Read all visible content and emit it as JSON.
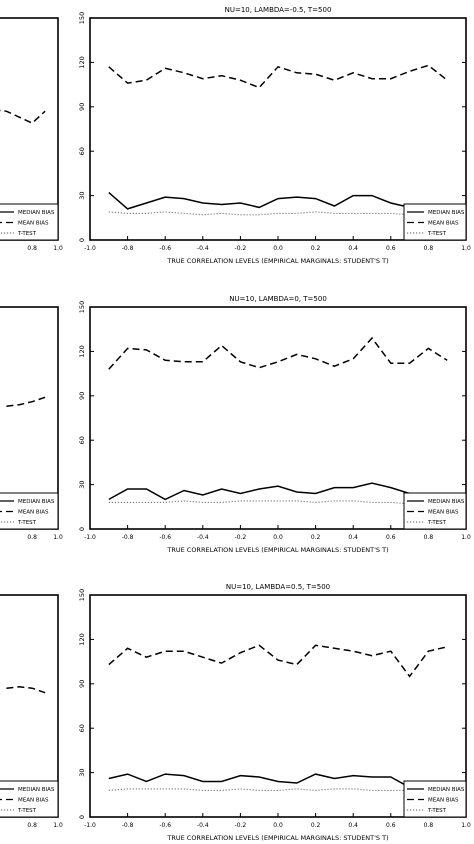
{
  "chart_data": [
    {
      "type": "line",
      "title": "NU=10,   LAMBDA=-0.5, T=500",
      "xlabel": "TRUE CORRELATION LEVELS (EMPIRICAL MARGINALS: STUDENT'S T)",
      "ylabel": "",
      "xlim": [
        -1.0,
        1.0
      ],
      "ylim": [
        0,
        150
      ],
      "xticks": [
        "-1.0",
        "-0.8",
        "-0.6",
        "-0.4",
        "-0.2",
        "0.0",
        "0.2",
        "0.4",
        "0.6",
        "0.8",
        "1.0"
      ],
      "yticks": [
        "0",
        "30",
        "60",
        "90",
        "120",
        "150"
      ],
      "legend_position": "bottom-right",
      "x": [
        -0.9,
        -0.8,
        -0.7,
        -0.6,
        -0.5,
        -0.4,
        -0.3,
        -0.2,
        -0.1,
        0.0,
        0.1,
        0.2,
        0.3,
        0.4,
        0.5,
        0.6,
        0.7,
        0.8,
        0.9
      ],
      "series": [
        {
          "name": "MEDIAN BIAS",
          "style": "solid",
          "values": [
            32,
            21,
            25,
            29,
            28,
            25,
            24,
            25,
            22,
            28,
            29,
            28,
            23,
            30,
            30,
            25,
            22,
            21,
            20
          ]
        },
        {
          "name": "MEAN BIAS",
          "style": "dashed",
          "values": [
            117,
            106,
            108,
            116,
            113,
            109,
            111,
            108,
            103,
            117,
            113,
            112,
            108,
            113,
            109,
            109,
            114,
            118,
            108
          ]
        },
        {
          "name": "T-TEST",
          "style": "dotted",
          "values": [
            19,
            18,
            18,
            19,
            18,
            17,
            18,
            17,
            17,
            18,
            18,
            19,
            18,
            18,
            18,
            18,
            17,
            18,
            18
          ]
        }
      ],
      "left_partial": {
        "xticks": [
          "0.8",
          "1.0"
        ],
        "legend": [
          "MEDIAN BIAS",
          "MEAN BIAS",
          "T-TEST"
        ],
        "mean_x": [
          0.5,
          0.6,
          0.7,
          0.8,
          0.9
        ],
        "mean_values": [
          88,
          87,
          83,
          79,
          87
        ]
      }
    },
    {
      "type": "line",
      "title": "NU=10,   LAMBDA=0, T=500",
      "xlabel": "TRUE CORRELATION LEVELS (EMPIRICAL MARGINALS: STUDENT'S T)",
      "ylabel": "",
      "xlim": [
        -1.0,
        1.0
      ],
      "ylim": [
        0,
        150
      ],
      "xticks": [
        "-1.0",
        "-0.8",
        "-0.6",
        "-0.4",
        "-0.2",
        "0.0",
        "0.2",
        "0.4",
        "0.6",
        "0.8",
        "1.0"
      ],
      "yticks": [
        "0",
        "30",
        "60",
        "90",
        "120",
        "150"
      ],
      "legend_position": "bottom-right",
      "x": [
        -0.9,
        -0.8,
        -0.7,
        -0.6,
        -0.5,
        -0.4,
        -0.3,
        -0.2,
        -0.1,
        0.0,
        0.1,
        0.2,
        0.3,
        0.4,
        0.5,
        0.6,
        0.7,
        0.8,
        0.9
      ],
      "series": [
        {
          "name": "MEDIAN BIAS",
          "style": "solid",
          "values": [
            20,
            27,
            27,
            20,
            26,
            23,
            27,
            24,
            27,
            29,
            25,
            24,
            28,
            28,
            31,
            28,
            24,
            22,
            21
          ]
        },
        {
          "name": "MEAN BIAS",
          "style": "dashed",
          "values": [
            108,
            122,
            121,
            114,
            113,
            113,
            124,
            113,
            109,
            113,
            118,
            115,
            110,
            115,
            129,
            112,
            112,
            122,
            114
          ]
        },
        {
          "name": "T-TEST",
          "style": "dotted",
          "values": [
            18,
            18,
            18,
            18,
            19,
            18,
            18,
            19,
            19,
            19,
            19,
            18,
            19,
            19,
            18,
            18,
            17,
            17,
            17
          ]
        }
      ],
      "left_partial": {
        "xticks": [
          "0.8",
          "1.0"
        ],
        "legend": [
          "MEDIAN BIAS",
          "MEAN BIAS",
          "T-TEST"
        ],
        "mean_x": [
          0.6,
          0.7,
          0.8,
          0.9
        ],
        "mean_values": [
          83,
          84,
          86,
          89
        ]
      }
    },
    {
      "type": "line",
      "title": "NU=10,   LAMBDA=0.5, T=500",
      "xlabel": "TRUE CORRELATION LEVELS (EMPIRICAL MARGINALS: STUDENT'S T)",
      "ylabel": "",
      "xlim": [
        -1.0,
        1.0
      ],
      "ylim": [
        0,
        150
      ],
      "xticks": [
        "-1.0",
        "-0.8",
        "-0.6",
        "-0.4",
        "-0.2",
        "0.0",
        "0.2",
        "0.4",
        "0.6",
        "0.8",
        "1.0"
      ],
      "yticks": [
        "0",
        "30",
        "60",
        "90",
        "120",
        "150"
      ],
      "legend_position": "bottom-right",
      "x": [
        -0.9,
        -0.8,
        -0.7,
        -0.6,
        -0.5,
        -0.4,
        -0.3,
        -0.2,
        -0.1,
        0.0,
        0.1,
        0.2,
        0.3,
        0.4,
        0.5,
        0.6,
        0.7,
        0.8,
        0.9
      ],
      "series": [
        {
          "name": "MEDIAN BIAS",
          "style": "solid",
          "values": [
            26,
            29,
            24,
            29,
            28,
            24,
            24,
            28,
            27,
            24,
            23,
            29,
            26,
            28,
            27,
            27,
            20,
            20,
            20
          ]
        },
        {
          "name": "MEAN BIAS",
          "style": "dashed",
          "values": [
            103,
            114,
            108,
            112,
            112,
            108,
            104,
            111,
            116,
            106,
            103,
            116,
            114,
            112,
            109,
            112,
            95,
            112,
            115
          ]
        },
        {
          "name": "T-TEST",
          "style": "dotted",
          "values": [
            18,
            19,
            19,
            19,
            19,
            18,
            18,
            19,
            18,
            18,
            19,
            18,
            19,
            19,
            18,
            18,
            18,
            18,
            18
          ]
        }
      ],
      "left_partial": {
        "xticks": [
          "0.8",
          "1.0"
        ],
        "legend": [
          "MEDIAN BIAS",
          "MEAN BIAS",
          "T-TEST"
        ],
        "mean_x": [
          0.6,
          0.7,
          0.8,
          0.9
        ],
        "mean_values": [
          87,
          88,
          87,
          84
        ]
      }
    }
  ]
}
